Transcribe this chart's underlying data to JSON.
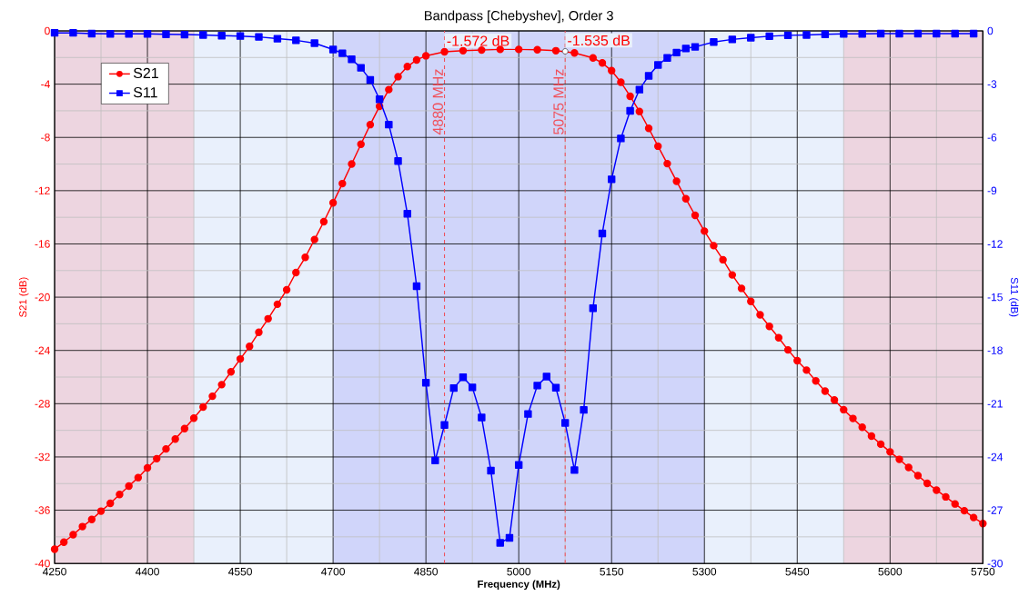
{
  "chart_data": {
    "type": "line",
    "title": "Bandpass [Chebyshev], Order 3",
    "xlabel": "Frequency (MHz)",
    "ylabel": "S21 (dB)",
    "y2label": "S11 (dB)",
    "xlim": [
      4250,
      5750
    ],
    "xticks": [
      4250,
      4400,
      4550,
      4700,
      4850,
      5000,
      5150,
      5300,
      5450,
      5600,
      5750
    ],
    "ylim": [
      -40,
      0
    ],
    "yticks": [
      -40,
      -36,
      -32,
      -28,
      -24,
      -20,
      -16,
      -12,
      -8,
      -4,
      0
    ],
    "y2lim": [
      -30,
      0
    ],
    "y2ticks": [
      -30,
      -27,
      -24,
      -21,
      -18,
      -15,
      -12,
      -9,
      -6,
      -3,
      0
    ],
    "grid": true,
    "legend": "top left",
    "series": [
      {
        "name": "S21",
        "color": "#ff0000",
        "marker": "circle",
        "x": [
          4250,
          4265,
          4280,
          4295,
          4310,
          4325,
          4340,
          4355,
          4370,
          4385,
          4400,
          4415,
          4430,
          4445,
          4460,
          4475,
          4490,
          4505,
          4520,
          4535,
          4550,
          4565,
          4580,
          4595,
          4610,
          4625,
          4640,
          4655,
          4670,
          4685,
          4700,
          4715,
          4730,
          4745,
          4760,
          4775,
          4790,
          4805,
          4820,
          4835,
          4850,
          4880,
          4910,
          4940,
          4970,
          5000,
          5030,
          5060,
          5090,
          5120,
          5135,
          5150,
          5165,
          5180,
          5195,
          5210,
          5225,
          5240,
          5255,
          5270,
          5285,
          5300,
          5315,
          5330,
          5345,
          5360,
          5375,
          5390,
          5405,
          5420,
          5435,
          5450,
          5465,
          5480,
          5495,
          5510,
          5525,
          5540,
          5555,
          5570,
          5585,
          5600,
          5615,
          5630,
          5645,
          5660,
          5675,
          5690,
          5705,
          5720,
          5735,
          5750
        ],
        "values": [
          -38.93,
          -38.4,
          -37.84,
          -37.23,
          -36.7,
          -36.07,
          -35.48,
          -34.82,
          -34.19,
          -33.55,
          -32.82,
          -32.13,
          -31.4,
          -30.66,
          -29.87,
          -29.09,
          -28.25,
          -27.44,
          -26.57,
          -25.61,
          -24.64,
          -23.7,
          -22.64,
          -21.62,
          -20.53,
          -19.45,
          -18.15,
          -17.01,
          -15.67,
          -14.33,
          -12.91,
          -11.47,
          -10.0,
          -8.51,
          -7.04,
          -5.67,
          -4.41,
          -3.44,
          -2.68,
          -2.18,
          -1.87,
          -1.57,
          -1.49,
          -1.44,
          -1.39,
          -1.39,
          -1.42,
          -1.49,
          -1.65,
          -2.03,
          -2.41,
          -2.99,
          -3.85,
          -4.91,
          -6.05,
          -7.32,
          -8.66,
          -9.97,
          -11.29,
          -12.61,
          -13.85,
          -15.04,
          -16.13,
          -17.19,
          -18.33,
          -19.34,
          -20.32,
          -21.32,
          -22.19,
          -23.05,
          -23.96,
          -24.77,
          -25.48,
          -26.29,
          -27.06,
          -27.72,
          -28.45,
          -29.11,
          -29.77,
          -30.43,
          -31.04,
          -31.62,
          -32.18,
          -32.79,
          -33.4,
          -33.98,
          -34.49,
          -35.0,
          -35.53,
          -36.04,
          -36.55,
          -37.0
        ]
      },
      {
        "name": "S11",
        "color": "#0000ff",
        "marker": "square",
        "axis": "y2",
        "x": [
          4250,
          4280,
          4310,
          4340,
          4370,
          4400,
          4430,
          4460,
          4490,
          4520,
          4550,
          4580,
          4610,
          4640,
          4670,
          4700,
          4715,
          4730,
          4745,
          4760,
          4775,
          4790,
          4805,
          4820,
          4835,
          4850,
          4865,
          4880,
          4895,
          4910,
          4925,
          4940,
          4955,
          4970,
          4985,
          5000,
          5015,
          5030,
          5045,
          5060,
          5075,
          5090,
          5105,
          5120,
          5135,
          5150,
          5165,
          5180,
          5195,
          5210,
          5225,
          5240,
          5255,
          5270,
          5285,
          5315,
          5345,
          5375,
          5405,
          5435,
          5465,
          5495,
          5525,
          5555,
          5585,
          5615,
          5645,
          5675,
          5705,
          5735
        ],
        "values": [
          -0.11,
          -0.11,
          -0.15,
          -0.17,
          -0.17,
          -0.17,
          -0.19,
          -0.21,
          -0.23,
          -0.27,
          -0.29,
          -0.34,
          -0.44,
          -0.53,
          -0.69,
          -1.05,
          -1.26,
          -1.6,
          -2.08,
          -2.76,
          -3.85,
          -5.28,
          -7.33,
          -10.3,
          -14.38,
          -19.82,
          -24.2,
          -22.2,
          -20.12,
          -19.51,
          -20.08,
          -21.78,
          -24.77,
          -28.84,
          -28.56,
          -24.45,
          -21.58,
          -19.98,
          -19.47,
          -20.1,
          -22.08,
          -24.74,
          -21.35,
          -15.62,
          -11.41,
          -8.36,
          -6.06,
          -4.5,
          -3.31,
          -2.53,
          -1.92,
          -1.52,
          -1.22,
          -0.99,
          -0.9,
          -0.63,
          -0.48,
          -0.38,
          -0.3,
          -0.25,
          -0.23,
          -0.19,
          -0.17,
          -0.17,
          -0.15,
          -0.15,
          -0.15,
          -0.15,
          -0.15,
          -0.15
        ]
      }
    ],
    "ref_lines": [
      {
        "axis": "x",
        "value": 4880,
        "label": "4880 MHz",
        "color": "#f0505a",
        "line_style": "dashed"
      },
      {
        "axis": "x",
        "value": 5075,
        "label": "5075 MHz",
        "color": "#f0505a",
        "line_style": "dashed"
      }
    ],
    "bands": [
      {
        "axis": "x",
        "from": 4250,
        "to": 4475,
        "color": "#edd5e0"
      },
      {
        "axis": "x",
        "from": 4700,
        "to": 5300,
        "color": "#d0d5fa"
      },
      {
        "axis": "x",
        "from": 5525,
        "to": 5750,
        "color": "#edd5e0"
      }
    ],
    "annotations": [
      {
        "text": "-1.572 dB",
        "x": 4880,
        "y": -1.572
      },
      {
        "text": "-1.535 dB",
        "x": 5075,
        "y": -1.535
      }
    ]
  }
}
